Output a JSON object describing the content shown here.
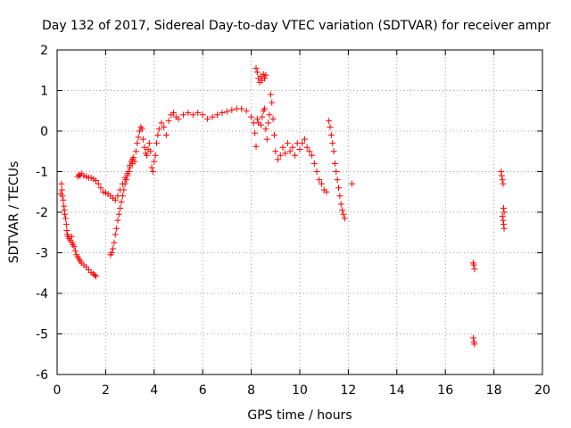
{
  "chart_data": {
    "type": "scatter",
    "title": "Day 132 of 2017, Sidereal Day-to-day VTEC variation (SDTVAR) for receiver ampr",
    "xlabel": "GPS time / hours",
    "ylabel": "SDTVAR / TECUs",
    "xlim": [
      0,
      20
    ],
    "ylim": [
      -6,
      2
    ],
    "x_ticks": [
      0,
      2,
      4,
      6,
      8,
      10,
      12,
      14,
      16,
      18,
      20
    ],
    "y_ticks": [
      2,
      1,
      0,
      -1,
      -2,
      -3,
      -4,
      -5,
      -6
    ],
    "grid": true,
    "marker": "+",
    "color": "#ff0000",
    "series": [
      {
        "name": "SDTVAR",
        "points": [
          [
            0.15,
            -1.55
          ],
          [
            0.18,
            -1.3
          ],
          [
            0.2,
            -1.45
          ],
          [
            0.22,
            -1.6
          ],
          [
            0.25,
            -1.7
          ],
          [
            0.28,
            -1.85
          ],
          [
            0.3,
            -1.95
          ],
          [
            0.32,
            -2.05
          ],
          [
            0.35,
            -2.15
          ],
          [
            0.38,
            -2.3
          ],
          [
            0.4,
            -2.45
          ],
          [
            0.42,
            -2.55
          ],
          [
            0.45,
            -2.6
          ],
          [
            0.5,
            -2.65
          ],
          [
            0.55,
            -2.7
          ],
          [
            0.6,
            -2.6
          ],
          [
            0.62,
            -2.75
          ],
          [
            0.65,
            -2.8
          ],
          [
            0.7,
            -2.85
          ],
          [
            0.75,
            -2.95
          ],
          [
            0.8,
            -3.05
          ],
          [
            0.85,
            -3.1
          ],
          [
            0.9,
            -3.15
          ],
          [
            0.95,
            -3.2
          ],
          [
            1.0,
            -3.25
          ],
          [
            1.1,
            -3.3
          ],
          [
            1.2,
            -3.35
          ],
          [
            1.3,
            -3.42
          ],
          [
            1.4,
            -3.48
          ],
          [
            1.5,
            -3.52
          ],
          [
            1.55,
            -3.55
          ],
          [
            1.6,
            -3.58
          ],
          [
            0.85,
            -1.12
          ],
          [
            0.9,
            -1.08
          ],
          [
            0.95,
            -1.1
          ],
          [
            1.0,
            -1.05
          ],
          [
            1.1,
            -1.1
          ],
          [
            1.2,
            -1.12
          ],
          [
            1.3,
            -1.15
          ],
          [
            1.4,
            -1.15
          ],
          [
            1.5,
            -1.18
          ],
          [
            1.6,
            -1.22
          ],
          [
            1.7,
            -1.3
          ],
          [
            1.8,
            -1.4
          ],
          [
            1.9,
            -1.5
          ],
          [
            2.0,
            -1.52
          ],
          [
            2.1,
            -1.55
          ],
          [
            2.2,
            -1.6
          ],
          [
            2.3,
            -1.65
          ],
          [
            2.4,
            -1.7
          ],
          [
            2.5,
            -1.6
          ],
          [
            2.6,
            -1.45
          ],
          [
            2.7,
            -1.3
          ],
          [
            2.8,
            -1.15
          ],
          [
            2.9,
            -1.05
          ],
          [
            3.0,
            -0.9
          ],
          [
            3.1,
            -0.8
          ],
          [
            2.2,
            -3.05
          ],
          [
            2.25,
            -3.0
          ],
          [
            2.3,
            -2.9
          ],
          [
            2.35,
            -2.75
          ],
          [
            2.4,
            -2.55
          ],
          [
            2.45,
            -2.4
          ],
          [
            2.5,
            -2.2
          ],
          [
            2.55,
            -2.05
          ],
          [
            2.6,
            -1.9
          ],
          [
            2.65,
            -1.75
          ],
          [
            2.7,
            -1.6
          ],
          [
            2.75,
            -1.45
          ],
          [
            2.8,
            -1.3
          ],
          [
            2.85,
            -1.2
          ],
          [
            2.9,
            -1.1
          ],
          [
            2.95,
            -1.0
          ],
          [
            3.0,
            -0.85
          ],
          [
            3.05,
            -0.75
          ],
          [
            3.1,
            -0.7
          ],
          [
            3.15,
            -0.65
          ],
          [
            3.2,
            -0.75
          ],
          [
            3.25,
            -0.5
          ],
          [
            3.3,
            -0.3
          ],
          [
            3.35,
            -0.15
          ],
          [
            3.4,
            0.0
          ],
          [
            3.45,
            0.1
          ],
          [
            3.5,
            0.05
          ],
          [
            3.55,
            -0.2
          ],
          [
            3.6,
            -0.4
          ],
          [
            3.65,
            -0.55
          ],
          [
            3.7,
            -0.6
          ],
          [
            3.75,
            -0.45
          ],
          [
            3.8,
            -0.3
          ],
          [
            3.85,
            -0.5
          ],
          [
            3.9,
            -0.9
          ],
          [
            3.95,
            -1.0
          ],
          [
            4.0,
            -0.75
          ],
          [
            4.05,
            -0.6
          ],
          [
            4.1,
            -0.3
          ],
          [
            4.15,
            -0.1
          ],
          [
            4.2,
            0.05
          ],
          [
            4.3,
            0.2
          ],
          [
            4.4,
            0.1
          ],
          [
            4.5,
            -0.1
          ],
          [
            4.6,
            0.25
          ],
          [
            4.7,
            0.4
          ],
          [
            4.8,
            0.45
          ],
          [
            4.9,
            0.35
          ],
          [
            5.0,
            0.3
          ],
          [
            5.2,
            0.4
          ],
          [
            5.4,
            0.45
          ],
          [
            5.6,
            0.4
          ],
          [
            5.8,
            0.45
          ],
          [
            6.0,
            0.4
          ],
          [
            6.2,
            0.3
          ],
          [
            6.4,
            0.35
          ],
          [
            6.6,
            0.4
          ],
          [
            6.8,
            0.45
          ],
          [
            7.0,
            0.48
          ],
          [
            7.2,
            0.52
          ],
          [
            7.4,
            0.55
          ],
          [
            7.6,
            0.55
          ],
          [
            7.8,
            0.5
          ],
          [
            8.0,
            0.35
          ],
          [
            8.1,
            0.2
          ],
          [
            8.15,
            -0.05
          ],
          [
            8.2,
            -0.38
          ],
          [
            8.25,
            0.3
          ],
          [
            8.3,
            0.2
          ],
          [
            8.4,
            0.15
          ],
          [
            8.45,
            0.35
          ],
          [
            8.5,
            0.5
          ],
          [
            8.55,
            0.55
          ],
          [
            8.2,
            1.55
          ],
          [
            8.25,
            1.45
          ],
          [
            8.3,
            1.3
          ],
          [
            8.35,
            1.2
          ],
          [
            8.4,
            1.35
          ],
          [
            8.45,
            1.25
          ],
          [
            8.5,
            1.4
          ],
          [
            8.55,
            1.3
          ],
          [
            8.6,
            1.38
          ],
          [
            8.6,
            0.05
          ],
          [
            8.65,
            -0.2
          ],
          [
            8.7,
            0.2
          ],
          [
            8.75,
            0.4
          ],
          [
            8.8,
            0.9
          ],
          [
            8.85,
            0.7
          ],
          [
            8.9,
            0.3
          ],
          [
            8.95,
            -0.1
          ],
          [
            9.0,
            -0.5
          ],
          [
            9.1,
            -0.7
          ],
          [
            9.2,
            -0.6
          ],
          [
            9.3,
            -0.4
          ],
          [
            9.4,
            -0.55
          ],
          [
            9.5,
            -0.3
          ],
          [
            9.6,
            -0.5
          ],
          [
            9.7,
            -0.4
          ],
          [
            9.8,
            -0.6
          ],
          [
            9.9,
            -0.3
          ],
          [
            10.0,
            -0.45
          ],
          [
            10.1,
            -0.3
          ],
          [
            10.2,
            -0.2
          ],
          [
            10.3,
            -0.4
          ],
          [
            10.4,
            -0.5
          ],
          [
            10.5,
            -0.6
          ],
          [
            10.6,
            -0.8
          ],
          [
            10.7,
            -1.0
          ],
          [
            10.8,
            -1.2
          ],
          [
            10.9,
            -1.3
          ],
          [
            11.0,
            -1.45
          ],
          [
            11.1,
            -1.5
          ],
          [
            11.2,
            0.25
          ],
          [
            11.25,
            0.1
          ],
          [
            11.3,
            -0.1
          ],
          [
            11.35,
            -0.3
          ],
          [
            11.4,
            -0.5
          ],
          [
            11.45,
            -0.8
          ],
          [
            11.5,
            -1.0
          ],
          [
            11.55,
            -1.2
          ],
          [
            11.6,
            -1.4
          ],
          [
            11.65,
            -1.6
          ],
          [
            11.7,
            -1.8
          ],
          [
            11.75,
            -1.95
          ],
          [
            11.8,
            -2.05
          ],
          [
            11.85,
            -2.15
          ],
          [
            12.15,
            -1.3
          ],
          [
            17.15,
            -3.25
          ],
          [
            17.17,
            -3.3
          ],
          [
            17.2,
            -3.4
          ],
          [
            17.15,
            -5.1
          ],
          [
            17.18,
            -5.2
          ],
          [
            17.2,
            -5.25
          ],
          [
            18.3,
            -1.0
          ],
          [
            18.32,
            -1.1
          ],
          [
            18.35,
            -1.2
          ],
          [
            18.38,
            -1.3
          ],
          [
            18.4,
            -1.9
          ],
          [
            18.42,
            -2.0
          ],
          [
            18.35,
            -2.1
          ],
          [
            18.38,
            -2.2
          ],
          [
            18.4,
            -2.3
          ],
          [
            18.42,
            -2.4
          ]
        ]
      }
    ]
  }
}
